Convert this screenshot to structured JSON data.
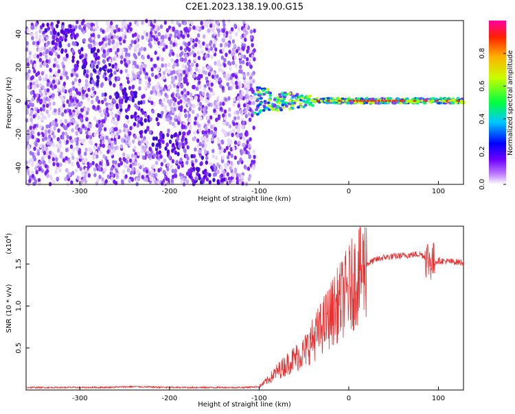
{
  "page": {
    "title": "C2E1.2023.138.19.00.G15"
  },
  "colors": {
    "spectrum_low": "#ffffff",
    "spectrum_mid": "#6a00ff",
    "snr_line": "#e83030",
    "axis": "#000000"
  },
  "chart_data": [
    {
      "type": "heatmap",
      "title": "C2E1.2023.138.19.00.G15",
      "xlabel": "Height of straight line (km)",
      "ylabel": "Frequency (Hz)",
      "xlim": [
        -360,
        128
      ],
      "ylim": [
        -50,
        48
      ],
      "x_ticks": [
        -300,
        -200,
        -100,
        0,
        100
      ],
      "y_ticks": [
        -40,
        -20,
        0,
        20,
        40
      ],
      "colorbar": {
        "label": "Normalized spectral amplitude",
        "range": [
          0,
          1
        ],
        "ticks": [
          "0.0",
          "0.2",
          "0.4",
          "0.6",
          "0.8"
        ],
        "colormap": "rainbow"
      },
      "regions": [
        {
          "x_range": [
            -360,
            -105
          ],
          "description_values": {
            "freq_range": [
              -50,
              48
            ],
            "amplitude": 0.15
          }
        },
        {
          "x_range": [
            -105,
            128
          ],
          "description_values": {
            "freq_center": 0,
            "amplitude": 0.9
          }
        }
      ]
    },
    {
      "type": "line",
      "xlabel": "Height of straight line (km)",
      "ylabel": "SNR (10 * v/v)",
      "y_multiplier": "(x10",
      "y_multiplier_exp": "4",
      "y_multiplier_close": ")",
      "xlim": [
        -360,
        128
      ],
      "ylim": [
        0,
        1.95
      ],
      "x_ticks": [
        -300,
        -200,
        -100,
        0,
        100
      ],
      "y_ticks": [
        "0.5",
        "1.0",
        "1.5"
      ],
      "series": [
        {
          "x": [
            -360,
            -320,
            -280,
            -240,
            -200,
            -160,
            -120,
            -100,
            -90,
            -80,
            -70,
            -60,
            -50,
            -40,
            -30,
            -20,
            -10,
            0,
            10,
            20,
            30,
            40,
            60,
            80,
            90,
            95,
            100,
            110,
            128
          ],
          "y": [
            0.03,
            0.03,
            0.03,
            0.04,
            0.03,
            0.03,
            0.03,
            0.04,
            0.12,
            0.22,
            0.3,
            0.38,
            0.45,
            0.6,
            0.75,
            0.9,
            1.05,
            1.2,
            1.35,
            1.5,
            1.55,
            1.58,
            1.6,
            1.62,
            1.55,
            1.52,
            1.54,
            1.53,
            1.52
          ]
        }
      ]
    }
  ]
}
